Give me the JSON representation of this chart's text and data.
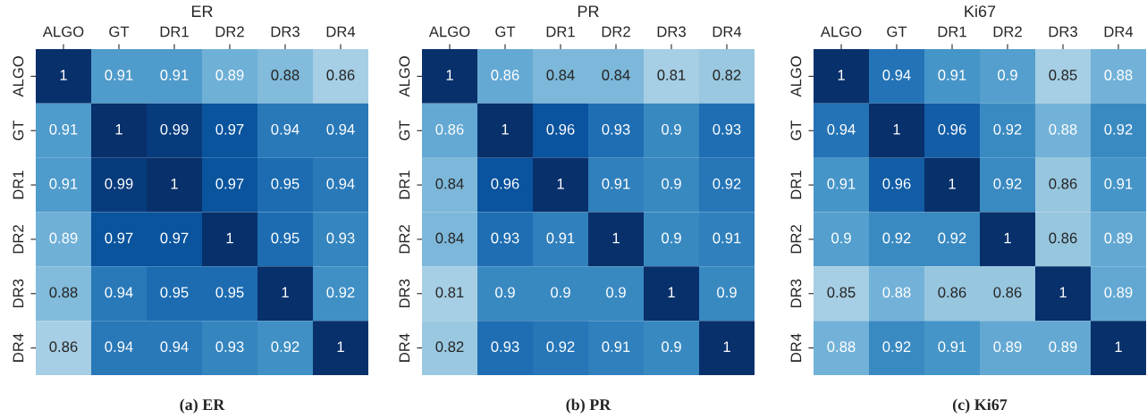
{
  "chart_data": [
    {
      "type": "heatmap",
      "title": "ER",
      "categories": [
        "ALGO",
        "GT",
        "DR1",
        "DR2",
        "DR3",
        "DR4"
      ],
      "y_categories": [
        "ALGO",
        "GT",
        "DR1",
        "DR2",
        "DR3",
        "DR4"
      ],
      "data_labels": true,
      "annotations": [
        "(a) ER"
      ],
      "cells": [
        [
          1,
          0.91,
          0.91,
          0.89,
          0.88,
          0.86
        ],
        [
          0.91,
          1,
          0.99,
          0.97,
          0.94,
          0.94
        ],
        [
          0.91,
          0.99,
          1,
          0.97,
          0.95,
          0.94
        ],
        [
          0.89,
          0.97,
          0.97,
          1,
          0.95,
          0.93
        ],
        [
          0.88,
          0.94,
          0.95,
          0.95,
          1,
          0.92
        ],
        [
          0.86,
          0.94,
          0.94,
          0.93,
          0.92,
          1
        ]
      ]
    },
    {
      "type": "heatmap",
      "title": "PR",
      "categories": [
        "ALGO",
        "GT",
        "DR1",
        "DR2",
        "DR3",
        "DR4"
      ],
      "y_categories": [
        "ALGO",
        "GT",
        "DR1",
        "DR2",
        "DR3",
        "DR4"
      ],
      "data_labels": true,
      "annotations": [
        "(b) PR"
      ],
      "cells": [
        [
          1,
          0.86,
          0.84,
          0.84,
          0.81,
          0.82
        ],
        [
          0.86,
          1,
          0.96,
          0.93,
          0.9,
          0.93
        ],
        [
          0.84,
          0.96,
          1,
          0.91,
          0.9,
          0.92
        ],
        [
          0.84,
          0.93,
          0.91,
          1,
          0.9,
          0.91
        ],
        [
          0.81,
          0.9,
          0.9,
          0.9,
          1,
          0.9
        ],
        [
          0.82,
          0.93,
          0.92,
          0.91,
          0.9,
          1
        ]
      ]
    },
    {
      "type": "heatmap",
      "title": "Ki67",
      "categories": [
        "ALGO",
        "GT",
        "DR1",
        "DR2",
        "DR3",
        "DR4"
      ],
      "y_categories": [
        "ALGO",
        "GT",
        "DR1",
        "DR2",
        "DR3",
        "DR4"
      ],
      "data_labels": true,
      "annotations": [
        "(c) Ki67"
      ],
      "cells": [
        [
          1,
          0.94,
          0.91,
          0.9,
          0.85,
          0.88
        ],
        [
          0.94,
          1,
          0.96,
          0.92,
          0.88,
          0.92
        ],
        [
          0.91,
          0.96,
          1,
          0.92,
          0.86,
          0.91
        ],
        [
          0.9,
          0.92,
          0.92,
          1,
          0.86,
          0.89
        ],
        [
          0.85,
          0.88,
          0.86,
          0.86,
          1,
          0.89
        ],
        [
          0.88,
          0.92,
          0.91,
          0.89,
          0.89,
          1
        ]
      ]
    }
  ]
}
